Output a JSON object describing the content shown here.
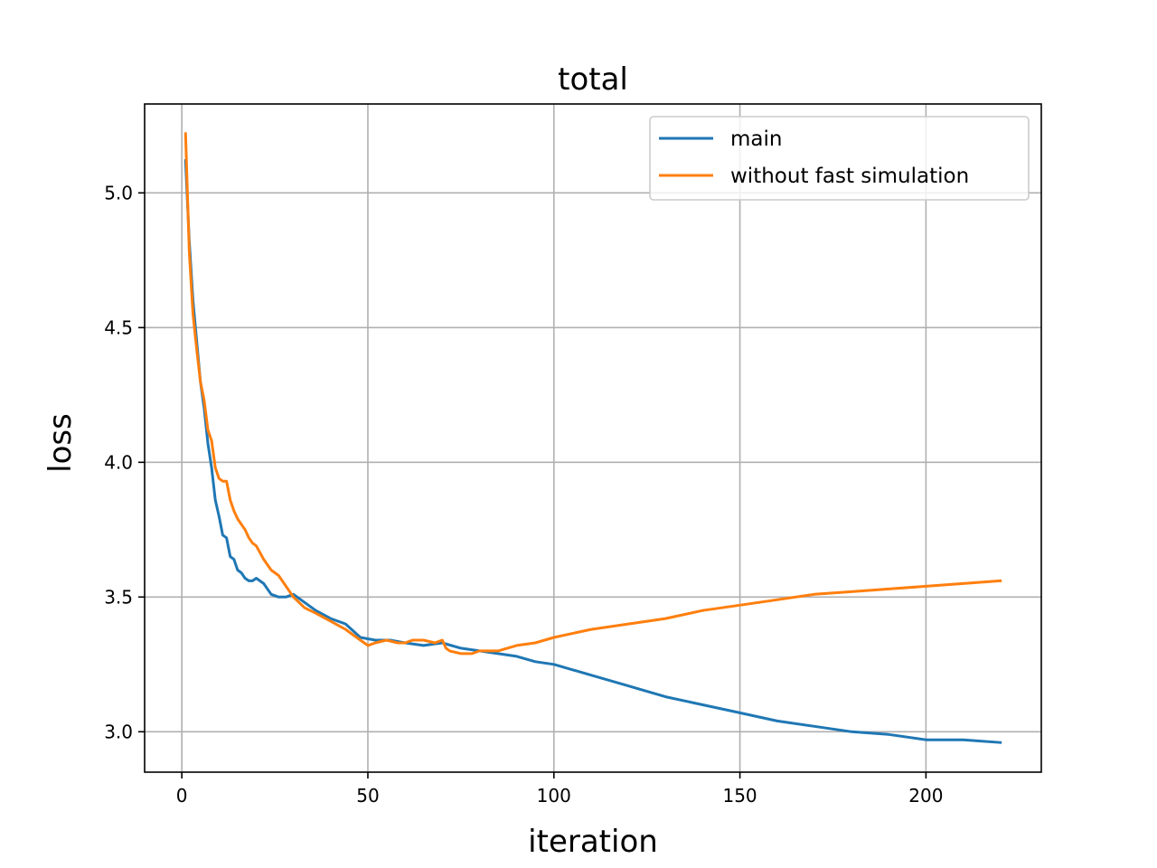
{
  "chart_data": {
    "type": "line",
    "title": "total",
    "xlabel": "iteration",
    "ylabel": "loss",
    "xlim": [
      -10,
      231
    ],
    "ylim": [
      2.85,
      5.33
    ],
    "xticks": [
      0,
      50,
      100,
      150,
      200
    ],
    "yticks": [
      3.0,
      3.5,
      4.0,
      4.5,
      5.0
    ],
    "xtick_labels": [
      "0",
      "50",
      "100",
      "150",
      "200"
    ],
    "ytick_labels": [
      "3.0",
      "3.5",
      "4.0",
      "4.5",
      "5.0"
    ],
    "grid": true,
    "legend_position": "top-right",
    "series": [
      {
        "name": "main",
        "color": "#1f77b4",
        "x": [
          1,
          2,
          3,
          4,
          5,
          6,
          7,
          8,
          9,
          10,
          11,
          12,
          13,
          14,
          15,
          16,
          17,
          18,
          19,
          20,
          22,
          24,
          26,
          28,
          30,
          33,
          36,
          40,
          44,
          48,
          52,
          56,
          60,
          65,
          70,
          75,
          80,
          85,
          90,
          95,
          100,
          110,
          120,
          130,
          140,
          150,
          160,
          170,
          180,
          190,
          200,
          210,
          220
        ],
        "y": [
          5.12,
          4.82,
          4.6,
          4.45,
          4.3,
          4.2,
          4.07,
          3.98,
          3.86,
          3.8,
          3.73,
          3.72,
          3.65,
          3.64,
          3.6,
          3.59,
          3.57,
          3.56,
          3.56,
          3.57,
          3.55,
          3.51,
          3.5,
          3.5,
          3.51,
          3.48,
          3.45,
          3.42,
          3.4,
          3.35,
          3.34,
          3.34,
          3.33,
          3.32,
          3.33,
          3.31,
          3.3,
          3.29,
          3.28,
          3.26,
          3.25,
          3.21,
          3.17,
          3.13,
          3.1,
          3.07,
          3.04,
          3.02,
          3.0,
          2.99,
          2.97,
          2.97,
          2.96
        ]
      },
      {
        "name": "without fast simulation",
        "color": "#ff7f0e",
        "x": [
          1,
          2,
          3,
          4,
          5,
          6,
          7,
          8,
          9,
          10,
          11,
          12,
          13,
          14,
          15,
          16,
          17,
          18,
          19,
          20,
          22,
          24,
          26,
          28,
          30,
          33,
          36,
          40,
          44,
          48,
          50,
          52,
          55,
          58,
          60,
          62,
          65,
          68,
          70,
          71,
          72,
          75,
          78,
          80,
          85,
          90,
          95,
          100,
          110,
          120,
          130,
          140,
          150,
          160,
          170,
          180,
          190,
          200,
          210,
          220
        ],
        "y": [
          5.22,
          4.78,
          4.55,
          4.42,
          4.3,
          4.23,
          4.12,
          4.08,
          3.98,
          3.94,
          3.93,
          3.93,
          3.86,
          3.82,
          3.79,
          3.77,
          3.75,
          3.72,
          3.7,
          3.69,
          3.64,
          3.6,
          3.58,
          3.54,
          3.5,
          3.46,
          3.44,
          3.41,
          3.38,
          3.34,
          3.32,
          3.33,
          3.34,
          3.33,
          3.33,
          3.34,
          3.34,
          3.33,
          3.34,
          3.31,
          3.3,
          3.29,
          3.29,
          3.3,
          3.3,
          3.32,
          3.33,
          3.35,
          3.38,
          3.4,
          3.42,
          3.45,
          3.47,
          3.49,
          3.51,
          3.52,
          3.53,
          3.54,
          3.55,
          3.56
        ]
      }
    ]
  }
}
